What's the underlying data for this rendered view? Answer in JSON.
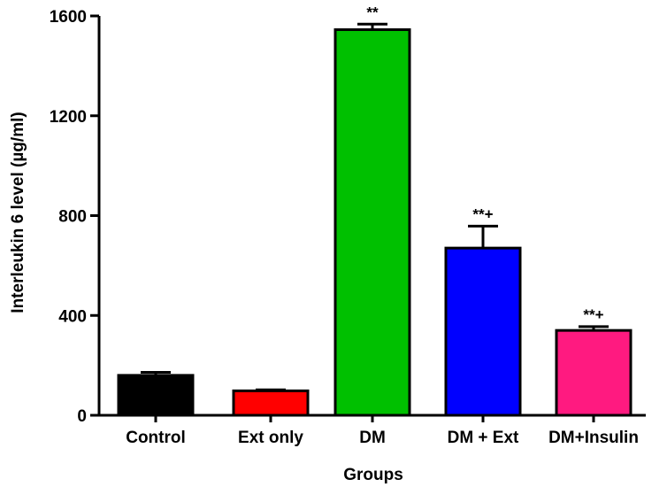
{
  "chart_data": {
    "type": "bar",
    "title": "",
    "xlabel": "Groups",
    "ylabel": "Interleukin 6 level (µg/ml)",
    "ylim": [
      0,
      1600
    ],
    "yticks": [
      0,
      400,
      800,
      1200,
      1600
    ],
    "ytick_labels": [
      "0",
      "400",
      "800",
      "1200",
      "1600"
    ],
    "grid": false,
    "categories": [
      "Control",
      "Ext only",
      "DM",
      "DM + Ext",
      "DM+Insulin"
    ],
    "values": [
      160,
      98,
      1545,
      670,
      340
    ],
    "errors": [
      12,
      4,
      22,
      88,
      15
    ],
    "colors": [
      "#000000",
      "#ff0000",
      "#00c000",
      "#0000ff",
      "#ff1a80"
    ],
    "annotations": [
      "",
      "",
      "**",
      "**+",
      "**+"
    ]
  }
}
